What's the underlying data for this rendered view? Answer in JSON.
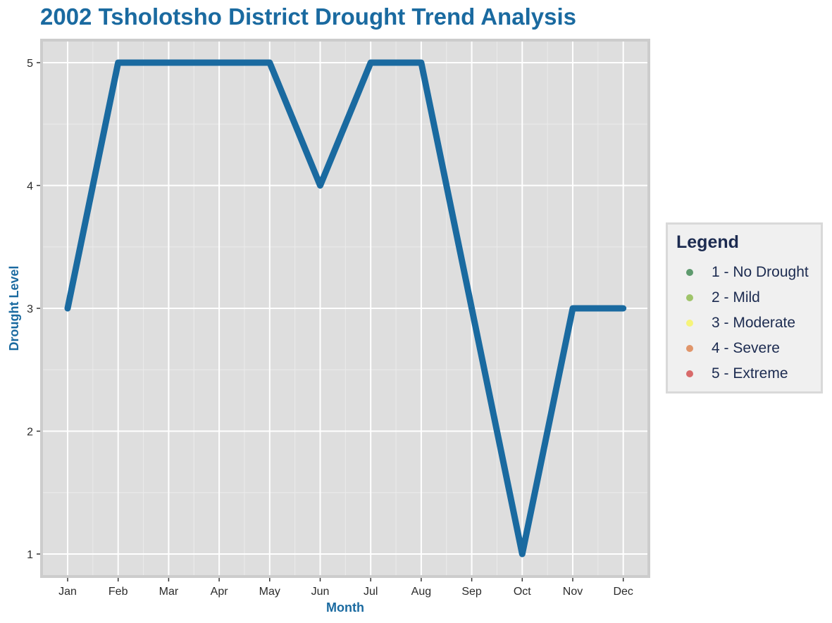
{
  "chart_data": {
    "type": "line",
    "title": "2002 Tsholotsho District Drought Trend Analysis",
    "xlabel": "Month",
    "ylabel": "Drought Level",
    "categories": [
      "Jan",
      "Feb",
      "Mar",
      "Apr",
      "May",
      "Jun",
      "Jul",
      "Aug",
      "Sep",
      "Oct",
      "Nov",
      "Dec"
    ],
    "series": [
      {
        "values": [
          3,
          5,
          5,
          5,
          5,
          4,
          5,
          5,
          3,
          1,
          3,
          3
        ],
        "color": "#1a6aa0"
      }
    ],
    "y_ticks": [
      1,
      2,
      3,
      4,
      5
    ],
    "ylim": [
      0.82,
      5.17
    ],
    "grid": true,
    "legend_position": "right",
    "legend": {
      "title": "Legend",
      "items": [
        {
          "label": "1 - No Drought",
          "color": "#5e9a6e"
        },
        {
          "label": "2 - Mild",
          "color": "#9fc46a"
        },
        {
          "label": "3 - Moderate",
          "color": "#f6f47a"
        },
        {
          "label": "4 - Severe",
          "color": "#e0956a"
        },
        {
          "label": "5 - Extreme",
          "color": "#d86a6a"
        }
      ]
    },
    "colors": {
      "title": "#1a6aa0",
      "axis_title": "#1a6aa0",
      "legend_text": "#1c2b50",
      "panel_background": "#dedede",
      "panel_border": "#cccccc",
      "grid_major": "#ffffff",
      "grid_minor": "#ebebeb"
    }
  }
}
